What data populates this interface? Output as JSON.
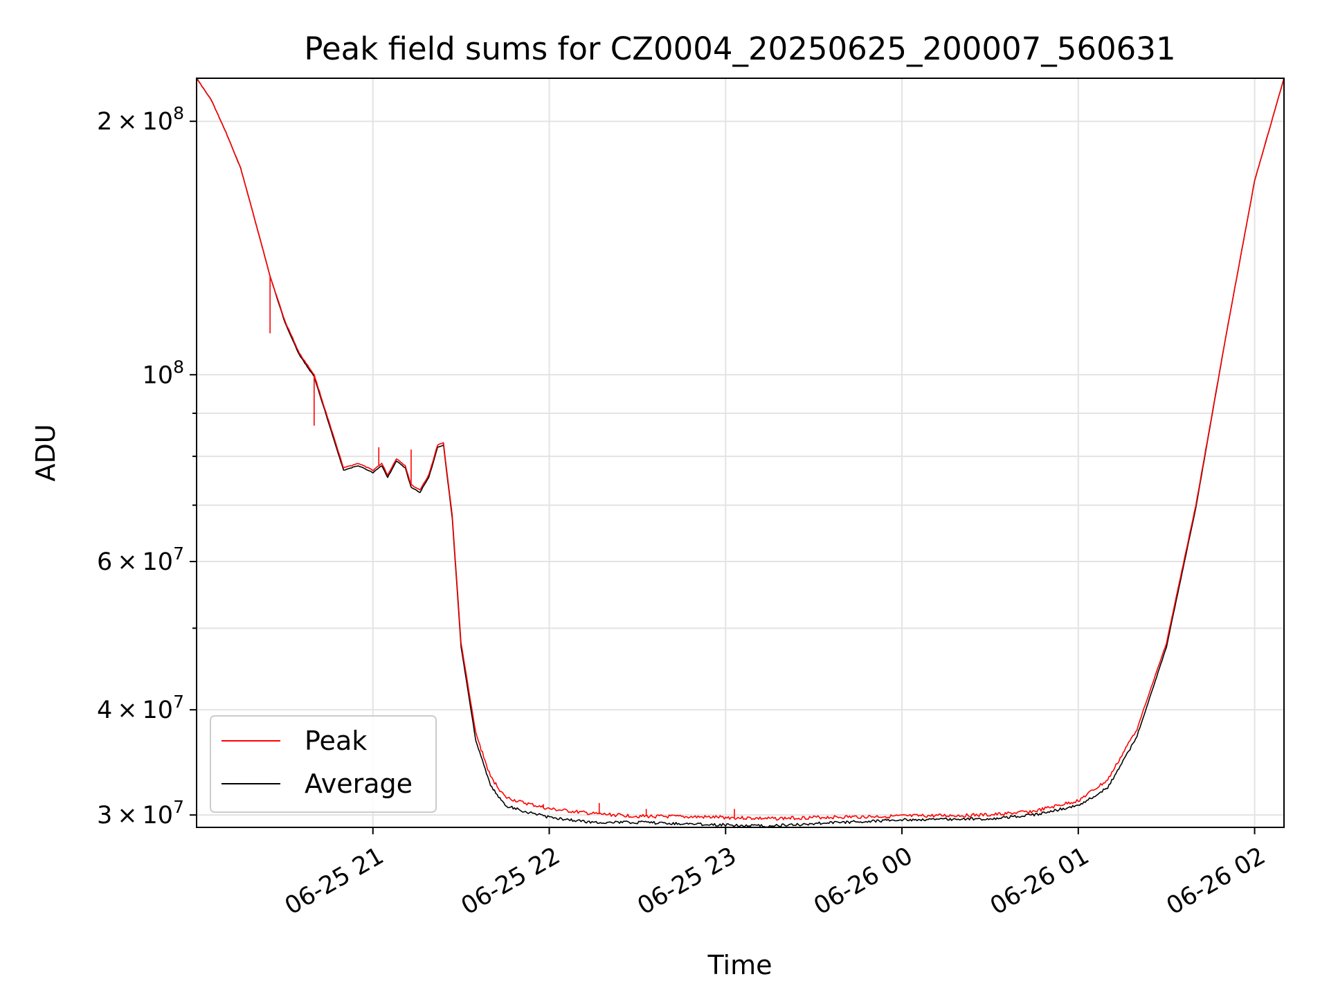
{
  "chart_data": {
    "type": "line",
    "title": "Peak field sums for CZ0004_20250625_200007_560631",
    "xlabel": "Time",
    "ylabel": "ADU",
    "yscale": "log",
    "xlim": [
      "2025-06-25 20:00",
      "2025-06-26 02:10"
    ],
    "ylim": [
      29000000,
      225000000
    ],
    "x_ticks": [
      {
        "value": "2025-06-25 21:00",
        "label": "06-25 21"
      },
      {
        "value": "2025-06-25 22:00",
        "label": "06-25 22"
      },
      {
        "value": "2025-06-25 23:00",
        "label": "06-25 23"
      },
      {
        "value": "2025-06-26 00:00",
        "label": "06-26 00"
      },
      {
        "value": "2025-06-26 01:00",
        "label": "06-26 01"
      },
      {
        "value": "2025-06-26 02:00",
        "label": "06-26 02"
      }
    ],
    "y_ticks": [
      {
        "value": 30000000,
        "mantissa": "3",
        "exp": "7"
      },
      {
        "value": 40000000,
        "mantissa": "4",
        "exp": "7"
      },
      {
        "value": 60000000,
        "mantissa": "6",
        "exp": "7"
      },
      {
        "value": 100000000,
        "mantissa": "",
        "exp": "8"
      },
      {
        "value": 200000000,
        "mantissa": "2",
        "exp": "8"
      }
    ],
    "y_minor_ticks": [
      50000000,
      70000000,
      80000000,
      90000000
    ],
    "grid": true,
    "legend": "lower-left",
    "series": [
      {
        "name": "Peak",
        "color": "#ff0000",
        "points": [
          [
            "2025-06-25 20:00",
            225000000
          ],
          [
            "2025-06-25 20:05",
            212000000
          ],
          [
            "2025-06-25 20:10",
            194000000
          ],
          [
            "2025-06-25 20:15",
            176000000
          ],
          [
            "2025-06-25 20:20",
            152000000
          ],
          [
            "2025-06-25 20:25",
            131000000
          ],
          [
            "2025-06-25 20:30",
            116000000
          ],
          [
            "2025-06-25 20:35",
            106000000
          ],
          [
            "2025-06-25 20:40",
            100000000
          ],
          [
            "2025-06-25 20:45",
            88000000
          ],
          [
            "2025-06-25 20:50",
            77500000
          ],
          [
            "2025-06-25 20:55",
            78500000
          ],
          [
            "2025-06-25 21:00",
            77000000
          ],
          [
            "2025-06-25 21:03",
            78500000
          ],
          [
            "2025-06-25 21:05",
            76000000
          ],
          [
            "2025-06-25 21:08",
            79500000
          ],
          [
            "2025-06-25 21:11",
            78000000
          ],
          [
            "2025-06-25 21:13",
            74000000
          ],
          [
            "2025-06-25 21:16",
            73000000
          ],
          [
            "2025-06-25 21:19",
            76000000
          ],
          [
            "2025-06-25 21:22",
            82500000
          ],
          [
            "2025-06-25 21:24",
            83000000
          ],
          [
            "2025-06-25 21:27",
            68000000
          ],
          [
            "2025-06-25 21:30",
            48000000
          ],
          [
            "2025-06-25 21:35",
            37500000
          ],
          [
            "2025-06-25 21:40",
            33300000
          ],
          [
            "2025-06-25 21:45",
            31500000
          ],
          [
            "2025-06-25 21:50",
            31100000
          ],
          [
            "2025-06-25 22:00",
            30500000
          ],
          [
            "2025-06-25 22:15",
            30100000
          ],
          [
            "2025-06-25 22:30",
            29900000
          ],
          [
            "2025-06-25 23:00",
            29800000
          ],
          [
            "2025-06-25 23:15",
            29700000
          ],
          [
            "2025-06-25 23:30",
            29800000
          ],
          [
            "2025-06-26 00:00",
            29900000
          ],
          [
            "2025-06-26 00:30",
            30000000
          ],
          [
            "2025-06-26 00:45",
            30300000
          ],
          [
            "2025-06-26 01:00",
            31200000
          ],
          [
            "2025-06-26 01:10",
            33000000
          ],
          [
            "2025-06-26 01:20",
            38000000
          ],
          [
            "2025-06-26 01:30",
            48000000
          ],
          [
            "2025-06-26 01:40",
            70000000
          ],
          [
            "2025-06-26 01:50",
            110000000
          ],
          [
            "2025-06-26 02:00",
            170000000
          ],
          [
            "2025-06-26 02:10",
            225000000
          ]
        ],
        "spikes": [
          [
            "2025-06-25 20:25",
            112000000
          ],
          [
            "2025-06-25 20:40",
            87000000
          ],
          [
            "2025-06-25 21:02",
            82000000
          ],
          [
            "2025-06-25 21:13",
            81500000
          ],
          [
            "2025-06-25 21:58",
            30900000
          ],
          [
            "2025-06-25 22:17",
            31000000
          ],
          [
            "2025-06-25 22:33",
            30500000
          ],
          [
            "2025-06-25 23:03",
            30500000
          ]
        ]
      },
      {
        "name": "Average",
        "color": "#000000",
        "points": [
          [
            "2025-06-25 20:00",
            225000000
          ],
          [
            "2025-06-25 20:05",
            212000000
          ],
          [
            "2025-06-25 20:10",
            194000000
          ],
          [
            "2025-06-25 20:15",
            176000000
          ],
          [
            "2025-06-25 20:20",
            152000000
          ],
          [
            "2025-06-25 20:25",
            131000000
          ],
          [
            "2025-06-25 20:30",
            115500000
          ],
          [
            "2025-06-25 20:35",
            105500000
          ],
          [
            "2025-06-25 20:40",
            99500000
          ],
          [
            "2025-06-25 20:45",
            87500000
          ],
          [
            "2025-06-25 20:50",
            77000000
          ],
          [
            "2025-06-25 20:55",
            78000000
          ],
          [
            "2025-06-25 21:00",
            76500000
          ],
          [
            "2025-06-25 21:03",
            78000000
          ],
          [
            "2025-06-25 21:05",
            75500000
          ],
          [
            "2025-06-25 21:08",
            79000000
          ],
          [
            "2025-06-25 21:11",
            77500000
          ],
          [
            "2025-06-25 21:13",
            73500000
          ],
          [
            "2025-06-25 21:16",
            72500000
          ],
          [
            "2025-06-25 21:19",
            75500000
          ],
          [
            "2025-06-25 21:22",
            82000000
          ],
          [
            "2025-06-25 21:24",
            82500000
          ],
          [
            "2025-06-25 21:27",
            67500000
          ],
          [
            "2025-06-25 21:30",
            47500000
          ],
          [
            "2025-06-25 21:35",
            36800000
          ],
          [
            "2025-06-25 21:40",
            32500000
          ],
          [
            "2025-06-25 21:45",
            30800000
          ],
          [
            "2025-06-25 21:50",
            30400000
          ],
          [
            "2025-06-25 22:00",
            29800000
          ],
          [
            "2025-06-25 22:15",
            29400000
          ],
          [
            "2025-06-25 22:30",
            29400000
          ],
          [
            "2025-06-25 23:00",
            29200000
          ],
          [
            "2025-06-25 23:15",
            29100000
          ],
          [
            "2025-06-25 23:30",
            29300000
          ],
          [
            "2025-06-26 00:00",
            29600000
          ],
          [
            "2025-06-26 00:30",
            29700000
          ],
          [
            "2025-06-26 00:45",
            30000000
          ],
          [
            "2025-06-26 01:00",
            30800000
          ],
          [
            "2025-06-26 01:10",
            32300000
          ],
          [
            "2025-06-26 01:20",
            37200000
          ],
          [
            "2025-06-26 01:30",
            47500000
          ],
          [
            "2025-06-26 01:40",
            69500000
          ],
          [
            "2025-06-26 01:50",
            110000000
          ],
          [
            "2025-06-26 02:00",
            170000000
          ],
          [
            "2025-06-26 02:10",
            225000000
          ]
        ]
      }
    ]
  }
}
